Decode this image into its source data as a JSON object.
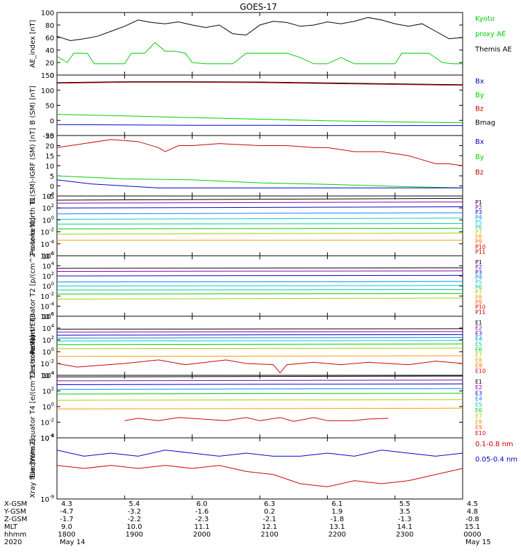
{
  "title": "GOES-17",
  "chart_data": [
    {
      "type": "line",
      "ylabel": "AE_index [nT]",
      "ylim": [
        0,
        100
      ],
      "yticks": [
        "0",
        "20",
        "40",
        "60",
        "80",
        "100"
      ],
      "xlim": [
        1800,
        2400
      ],
      "legend": [
        "Kyoto",
        "proxy AE",
        "Themis AE"
      ],
      "series": [
        {
          "color": "#000000",
          "x": [
            1800,
            1820,
            1840,
            1860,
            1880,
            1900,
            1920,
            1940,
            1960,
            1980,
            2000,
            2020,
            2040,
            2060,
            2080,
            2100,
            2120,
            2140,
            2160,
            2180,
            2200,
            2220,
            2240,
            2260,
            2280,
            2300,
            2320,
            2340,
            2360,
            2380,
            2400
          ],
          "values": [
            62,
            55,
            58,
            62,
            70,
            78,
            88,
            84,
            82,
            85,
            80,
            76,
            80,
            66,
            64,
            80,
            86,
            84,
            78,
            80,
            85,
            82,
            86,
            92,
            88,
            82,
            78,
            82,
            70,
            58,
            60
          ]
        },
        {
          "color": "#00cc00",
          "x": [
            1800,
            1815,
            1825,
            1845,
            1855,
            1870,
            1900,
            1910,
            1930,
            1945,
            1960,
            1975,
            1990,
            2000,
            2020,
            2060,
            2080,
            2140,
            2160,
            2180,
            2200,
            2220,
            2240,
            2300,
            2310,
            2330,
            2350,
            2370,
            2385,
            2400
          ],
          "values": [
            30,
            20,
            35,
            35,
            18,
            18,
            18,
            35,
            35,
            52,
            38,
            38,
            35,
            20,
            18,
            18,
            35,
            35,
            28,
            18,
            18,
            28,
            18,
            18,
            35,
            35,
            35,
            20,
            18,
            18
          ]
        }
      ]
    },
    {
      "type": "line",
      "ylabel": "B (SM) [nT]",
      "ylim": [
        -50,
        150
      ],
      "yticks": [
        "-50",
        "0",
        "50",
        "100",
        "150"
      ],
      "xlim": [
        1800,
        2400
      ],
      "legend": [
        "Bx",
        "By",
        "Bz",
        "Bmag"
      ],
      "series": [
        {
          "color": "#00cc00",
          "x": [
            1800,
            1900,
            2000,
            2100,
            2200,
            2300,
            2400
          ],
          "values": [
            20,
            15,
            9,
            4,
            -1,
            -5,
            -8
          ]
        },
        {
          "color": "#0000cc",
          "x": [
            1800,
            1900,
            2000,
            2100,
            2200,
            2300,
            2400
          ],
          "values": [
            -14,
            -15,
            -16,
            -16,
            -17,
            -17,
            -17
          ]
        },
        {
          "color": "#000000",
          "x": [
            1800,
            1900,
            2000,
            2100,
            2200,
            2300,
            2400
          ],
          "values": [
            125,
            128,
            128,
            127,
            124,
            121,
            118
          ]
        },
        {
          "color": "#cc0000",
          "x": [
            1800,
            1900,
            2000,
            2100,
            2200,
            2300,
            2400
          ],
          "values": [
            123,
            126,
            126,
            125,
            122,
            119,
            116
          ]
        }
      ]
    },
    {
      "type": "line",
      "ylabel": "B (SM)-IGRF (SM) [nT]",
      "ylim": [
        -5,
        25
      ],
      "yticks": [
        "-5",
        "0",
        "5",
        "10",
        "15",
        "20",
        "25"
      ],
      "xlim": [
        1800,
        2400
      ],
      "legend": [
        "Bx",
        "By",
        "Bz"
      ],
      "series": [
        {
          "color": "#cc0000",
          "x": [
            1800,
            1840,
            1880,
            1920,
            1950,
            1960,
            1980,
            2000,
            2040,
            2100,
            2140,
            2180,
            2200,
            2240,
            2280,
            2300,
            2320,
            2340,
            2360,
            2380,
            2400
          ],
          "values": [
            19,
            21,
            23,
            22,
            19,
            17,
            20,
            20,
            21,
            20,
            20,
            19,
            19,
            17,
            17,
            16,
            15,
            13,
            11,
            11,
            10
          ]
        },
        {
          "color": "#00cc00",
          "x": [
            1800,
            1900,
            2000,
            2100,
            2200,
            2300,
            2400
          ],
          "values": [
            5,
            3.5,
            3,
            1.5,
            0.8,
            -0.2,
            -1
          ]
        },
        {
          "color": "#0000cc",
          "x": [
            1800,
            1850,
            1900,
            1950,
            2000,
            2100,
            2200,
            2300,
            2400
          ],
          "values": [
            3,
            1,
            0,
            -1,
            -1,
            -1,
            -1,
            -1,
            -1
          ]
        }
      ]
    },
    {
      "type": "line",
      "ylabel": "Protons North T1",
      "log": true,
      "ylim": [
        -6,
        4
      ],
      "yticks": [
        "10^4",
        "10^2",
        "10^0",
        "10^-2",
        "10^-4",
        "10^-6"
      ],
      "xlim": [
        1800,
        2400
      ],
      "legend": [
        "P1",
        "P2",
        "P3",
        "P4",
        "P5",
        "P6",
        "P7",
        "P8",
        "P9",
        "P10",
        "P11"
      ],
      "series": [
        {
          "color": "#000000",
          "x": [
            1800,
            2400
          ],
          "values": [
            3.3,
            3.6
          ]
        },
        {
          "color": "#8800aa",
          "x": [
            1800,
            2400
          ],
          "values": [
            2.8,
            3.0
          ]
        },
        {
          "color": "#0000cc",
          "x": [
            1800,
            2400
          ],
          "values": [
            2.0,
            2.2
          ]
        },
        {
          "color": "#0088ff",
          "x": [
            1800,
            2400
          ],
          "values": [
            1.0,
            1.2
          ]
        },
        {
          "color": "#00cccc",
          "x": [
            1800,
            2400
          ],
          "values": [
            0.1,
            0.3
          ]
        },
        {
          "color": "#00cc88",
          "x": [
            1800,
            2400
          ],
          "values": [
            -0.7,
            -0.6
          ]
        },
        {
          "color": "#00cc00",
          "x": [
            1800,
            2400
          ],
          "values": [
            -1.5,
            -1.4
          ]
        },
        {
          "color": "#aacc00",
          "x": [
            1800,
            2400
          ],
          "values": [
            -2.4,
            -2.2
          ]
        },
        {
          "color": "#ff9900",
          "x": [
            1800,
            2400
          ],
          "values": [
            -3.4,
            -3.4
          ]
        }
      ]
    },
    {
      "type": "line",
      "ylabel": "Protons Equator T2 [p/(cm^2-s-sr-keV)]",
      "log": true,
      "ylim": [
        -6,
        6
      ],
      "yticks": [
        "10^6",
        "10^4",
        "10^2",
        "10^0",
        "10^-2",
        "10^-4",
        "10^-6"
      ],
      "xlim": [
        1800,
        2400
      ],
      "legend": [
        "P1",
        "P2",
        "P3",
        "P4",
        "P5",
        "P6",
        "P7",
        "P8",
        "P9",
        "P10",
        "P11"
      ],
      "series": [
        {
          "color": "#000000",
          "x": [
            1800,
            2400
          ],
          "values": [
            3.5,
            3.6
          ]
        },
        {
          "color": "#8800aa",
          "x": [
            1800,
            2400
          ],
          "values": [
            2.9,
            3.0
          ]
        },
        {
          "color": "#0000cc",
          "x": [
            1800,
            2400
          ],
          "values": [
            2.0,
            2.1
          ]
        },
        {
          "color": "#0088ff",
          "x": [
            1800,
            2400
          ],
          "values": [
            0.8,
            0.9
          ]
        },
        {
          "color": "#00cccc",
          "x": [
            1800,
            2400
          ],
          "values": [
            0.0,
            0.1
          ]
        },
        {
          "color": "#00cc88",
          "x": [
            1800,
            2400
          ],
          "values": [
            -0.8,
            -0.7
          ]
        },
        {
          "color": "#00cc00",
          "x": [
            1800,
            2400
          ],
          "values": [
            -1.6,
            -1.5
          ]
        },
        {
          "color": "#aacc00",
          "x": [
            1800,
            2400
          ],
          "values": [
            -2.6,
            -2.4
          ]
        }
      ]
    },
    {
      "type": "line",
      "ylabel": "Electrons North T3",
      "log": true,
      "ylim": [
        -4,
        6
      ],
      "yticks": [
        "10^6",
        "10^4",
        "10^2",
        "10^0",
        "10^-2",
        "10^-4"
      ],
      "xlim": [
        1800,
        2400
      ],
      "legend": [
        "E1",
        "E2",
        "E3",
        "E4",
        "E5",
        "E6",
        "E7",
        "E8",
        "E9",
        "E10"
      ],
      "series": [
        {
          "color": "#000000",
          "x": [
            1800,
            2400
          ],
          "values": [
            3.8,
            3.9
          ]
        },
        {
          "color": "#8800aa",
          "x": [
            1800,
            2400
          ],
          "values": [
            3.3,
            3.4
          ]
        },
        {
          "color": "#0000cc",
          "x": [
            1800,
            2400
          ],
          "values": [
            2.8,
            2.9
          ]
        },
        {
          "color": "#0088ff",
          "x": [
            1800,
            2400
          ],
          "values": [
            2.3,
            2.4
          ]
        },
        {
          "color": "#00cccc",
          "x": [
            1800,
            2400
          ],
          "values": [
            1.8,
            1.9
          ]
        },
        {
          "color": "#00cc00",
          "x": [
            1800,
            2400
          ],
          "values": [
            1.2,
            1.3
          ]
        },
        {
          "color": "#aacc00",
          "x": [
            1800,
            2400
          ],
          "values": [
            0.5,
            0.6
          ]
        },
        {
          "color": "#ff9900",
          "x": [
            1800,
            2400
          ],
          "values": [
            -0.8,
            -0.7
          ]
        },
        {
          "color": "#cc0000",
          "x": [
            1800,
            1830,
            1900,
            1950,
            1990,
            2050,
            2080,
            2120,
            2130,
            2140,
            2180,
            2220,
            2260,
            2320,
            2360,
            2400
          ],
          "values": [
            -2,
            -2.6,
            -2,
            -1.4,
            -2.2,
            -1.4,
            -2,
            -2.2,
            -3.6,
            -2.2,
            -1.8,
            -2.2,
            -1.8,
            -2.2,
            -1.6,
            -2
          ]
        }
      ]
    },
    {
      "type": "line",
      "ylabel": "Electrons Equator T4 [e/(cm^2-s-sr-keV)]",
      "log": true,
      "ylim": [
        -4,
        4
      ],
      "yticks": [
        "10^4",
        "10^2",
        "10^0",
        "10^-2",
        "10^-4"
      ],
      "xlim": [
        1800,
        2400
      ],
      "legend": [
        "E1",
        "E2",
        "E3",
        "E4",
        "E5",
        "E6",
        "E7",
        "E8",
        "E9",
        "E10"
      ],
      "series": [
        {
          "color": "#000000",
          "x": [
            1800,
            2400
          ],
          "values": [
            3.8,
            3.9
          ]
        },
        {
          "color": "#8800aa",
          "x": [
            1800,
            2400
          ],
          "values": [
            3.3,
            3.4
          ]
        },
        {
          "color": "#0000cc",
          "x": [
            1800,
            2400
          ],
          "values": [
            2.8,
            2.9
          ]
        },
        {
          "color": "#0088ff",
          "x": [
            1800,
            2400
          ],
          "values": [
            2.2,
            2.3
          ]
        },
        {
          "color": "#00cc00",
          "x": [
            1800,
            2400
          ],
          "values": [
            1.6,
            1.7
          ]
        },
        {
          "color": "#aacc00",
          "x": [
            1800,
            2400
          ],
          "values": [
            0.8,
            0.9
          ]
        },
        {
          "color": "#ff9900",
          "x": [
            1800,
            2400
          ],
          "values": [
            -0.3,
            -0.2
          ]
        },
        {
          "color": "#cc0000",
          "x": [
            1900,
            1920,
            1950,
            1980,
            2050,
            2080,
            2100,
            2130,
            2150,
            2180,
            2200,
            2240,
            2260,
            2290
          ],
          "values": [
            -1.8,
            -1.5,
            -1.8,
            -1.4,
            -1.8,
            -1.4,
            -1.8,
            -1.4,
            -1.9,
            -1.4,
            -1.8,
            -1.8,
            -1.6,
            -1.5
          ]
        }
      ]
    },
    {
      "type": "line",
      "ylabel": "Xray flux [W/m2]",
      "log": true,
      "ylim": [
        -9,
        -8
      ],
      "yticks": [
        "10^-8",
        "10^-9"
      ],
      "xlim": [
        1800,
        2400
      ],
      "legend": [
        "0.1-0.8 nm",
        "0.05-0.4 nm"
      ],
      "series": [
        {
          "color": "#0000cc",
          "x": [
            1800,
            1840,
            1880,
            1920,
            1960,
            2000,
            2040,
            2080,
            2120,
            2160,
            2200,
            2240,
            2280,
            2320,
            2360,
            2400
          ],
          "values": [
            -8.2,
            -8.3,
            -8.25,
            -8.3,
            -8.2,
            -8.25,
            -8.3,
            -8.25,
            -8.3,
            -8.3,
            -8.25,
            -8.3,
            -8.2,
            -8.25,
            -8.3,
            -8.25
          ]
        },
        {
          "color": "#cc0000",
          "x": [
            1800,
            1840,
            1880,
            1920,
            1960,
            2000,
            2040,
            2080,
            2120,
            2160,
            2200,
            2240,
            2280,
            2320,
            2360,
            2400
          ],
          "values": [
            -8.45,
            -8.5,
            -8.45,
            -8.5,
            -8.45,
            -8.5,
            -8.45,
            -8.55,
            -8.6,
            -8.75,
            -8.8,
            -8.7,
            -8.75,
            -8.7,
            -8.6,
            -8.5
          ]
        }
      ]
    }
  ],
  "orbit_table": {
    "labels": [
      "X-GSM",
      "Y-GSM",
      "Z-GSM",
      "MLT",
      "hhmm",
      "2020"
    ],
    "columns": [
      {
        "values": [
          "4.3",
          "-4.7",
          "-1.7",
          "9.0",
          "1800",
          "May 14"
        ]
      },
      {
        "values": [
          "5.4",
          "-3.2",
          "-2.2",
          "10.0",
          "1900",
          ""
        ]
      },
      {
        "values": [
          "6.0",
          "-1.6",
          "-2.3",
          "11.1",
          "2000",
          ""
        ]
      },
      {
        "values": [
          "6.3",
          "0.2",
          "-2.1",
          "12.1",
          "2100",
          ""
        ]
      },
      {
        "values": [
          "6.1",
          "1.9",
          "-1.8",
          "13.1",
          "2200",
          ""
        ]
      },
      {
        "values": [
          "5.5",
          "3.5",
          "-1.3",
          "14.1",
          "2300",
          ""
        ]
      },
      {
        "values": [
          "4.5",
          "4.8",
          "-0.8",
          "15.1",
          "0000",
          "May 15"
        ]
      }
    ]
  }
}
